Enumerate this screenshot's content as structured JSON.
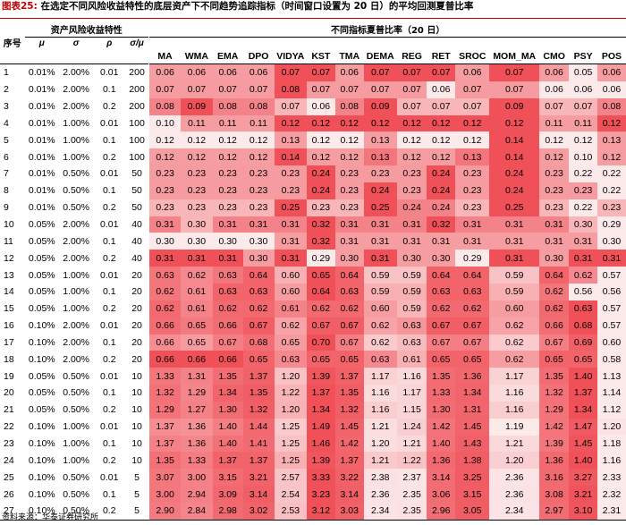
{
  "title": {
    "figure_no": "图表25:",
    "text": "在选定不同风险收益特性的底层资产下不同趋势追踪指标（时间窗口设置为 20 日）的平均回测夏普比率"
  },
  "header": {
    "index_label": "序号",
    "group_left": "资产风险收益特性",
    "group_right": "不同指标夏普比率（20 日）",
    "params": [
      "μ",
      "σ",
      "ρ",
      "σ/μ"
    ],
    "indicators": [
      "MA",
      "WMA",
      "EMA",
      "DPO",
      "VIDYA",
      "KST",
      "TMA",
      "DEMA",
      "REG",
      "RET",
      "SROC",
      "MOM_MA",
      "CMO",
      "PSY",
      "POS"
    ]
  },
  "colors": {
    "heat_low": "#fce9ea",
    "heat_high": "#f05058",
    "accent": "#c00000"
  },
  "rows": [
    {
      "i": "1",
      "mu": "0.01%",
      "sigma": "2.00%",
      "rho": "0.01",
      "sm": "200",
      "v": [
        "0.06",
        "0.06",
        "0.06",
        "0.06",
        "0.07",
        "0.07",
        "0.06",
        "0.07",
        "0.07",
        "0.07",
        "0.06",
        "0.07",
        "0.06",
        "0.05",
        "0.06"
      ]
    },
    {
      "i": "2",
      "mu": "0.01%",
      "sigma": "2.00%",
      "rho": "0.1",
      "sm": "200",
      "v": [
        "0.07",
        "0.07",
        "0.07",
        "0.07",
        "0.08",
        "0.07",
        "0.07",
        "0.07",
        "0.07",
        "0.06",
        "0.07",
        "0.07",
        "0.06",
        "0.06",
        "0.06"
      ]
    },
    {
      "i": "3",
      "mu": "0.01%",
      "sigma": "2.00%",
      "rho": "0.2",
      "sm": "200",
      "v": [
        "0.08",
        "0.09",
        "0.08",
        "0.08",
        "0.07",
        "0.06",
        "0.08",
        "0.09",
        "0.07",
        "0.07",
        "0.07",
        "0.09",
        "0.07",
        "0.07",
        "0.08"
      ]
    },
    {
      "i": "4",
      "mu": "0.01%",
      "sigma": "1.00%",
      "rho": "0.01",
      "sm": "100",
      "v": [
        "0.10",
        "0.11",
        "0.11",
        "0.11",
        "0.12",
        "0.12",
        "0.12",
        "0.12",
        "0.12",
        "0.12",
        "0.12",
        "0.12",
        "0.11",
        "0.11",
        "0.12"
      ]
    },
    {
      "i": "5",
      "mu": "0.01%",
      "sigma": "1.00%",
      "rho": "0.1",
      "sm": "100",
      "v": [
        "0.12",
        "0.12",
        "0.12",
        "0.12",
        "0.13",
        "0.12",
        "0.12",
        "0.13",
        "0.12",
        "0.12",
        "0.12",
        "0.14",
        "0.12",
        "0.12",
        "0.13"
      ]
    },
    {
      "i": "6",
      "mu": "0.01%",
      "sigma": "1.00%",
      "rho": "0.2",
      "sm": "100",
      "v": [
        "0.12",
        "0.12",
        "0.12",
        "0.12",
        "0.14",
        "0.12",
        "0.12",
        "0.13",
        "0.12",
        "0.12",
        "0.13",
        "0.14",
        "0.12",
        "0.10",
        "0.12"
      ]
    },
    {
      "i": "7",
      "mu": "0.01%",
      "sigma": "0.50%",
      "rho": "0.01",
      "sm": "50",
      "v": [
        "0.23",
        "0.23",
        "0.23",
        "0.23",
        "0.23",
        "0.24",
        "0.23",
        "0.23",
        "0.23",
        "0.24",
        "0.23",
        "0.24",
        "0.23",
        "0.22",
        "0.22"
      ]
    },
    {
      "i": "8",
      "mu": "0.01%",
      "sigma": "0.50%",
      "rho": "0.1",
      "sm": "50",
      "v": [
        "0.23",
        "0.23",
        "0.23",
        "0.23",
        "0.23",
        "0.24",
        "0.23",
        "0.24",
        "0.23",
        "0.24",
        "0.23",
        "0.24",
        "0.23",
        "0.23",
        "0.22"
      ]
    },
    {
      "i": "9",
      "mu": "0.01%",
      "sigma": "0.50%",
      "rho": "0.2",
      "sm": "50",
      "v": [
        "0.23",
        "0.23",
        "0.23",
        "0.23",
        "0.25",
        "0.23",
        "0.23",
        "0.25",
        "0.24",
        "0.24",
        "0.23",
        "0.25",
        "0.23",
        "0.22",
        "0.23"
      ]
    },
    {
      "i": "10",
      "mu": "0.05%",
      "sigma": "2.00%",
      "rho": "0.01",
      "sm": "40",
      "v": [
        "0.31",
        "0.30",
        "0.31",
        "0.31",
        "0.31",
        "0.32",
        "0.31",
        "0.31",
        "0.31",
        "0.32",
        "0.31",
        "0.31",
        "0.31",
        "0.30",
        "0.29"
      ]
    },
    {
      "i": "11",
      "mu": "0.05%",
      "sigma": "2.00%",
      "rho": "0.1",
      "sm": "40",
      "v": [
        "0.30",
        "0.30",
        "0.30",
        "0.30",
        "0.31",
        "0.32",
        "0.31",
        "0.31",
        "0.31",
        "0.31",
        "0.31",
        "0.31",
        "0.31",
        "0.31",
        "0.30"
      ]
    },
    {
      "i": "12",
      "mu": "0.05%",
      "sigma": "2.00%",
      "rho": "0.2",
      "sm": "40",
      "v": [
        "0.31",
        "0.31",
        "0.31",
        "0.30",
        "0.31",
        "0.29",
        "0.30",
        "0.31",
        "0.30",
        "0.30",
        "0.29",
        "0.31",
        "0.30",
        "0.31",
        "0.31"
      ]
    },
    {
      "i": "13",
      "mu": "0.05%",
      "sigma": "1.00%",
      "rho": "0.01",
      "sm": "20",
      "v": [
        "0.63",
        "0.62",
        "0.63",
        "0.64",
        "0.60",
        "0.65",
        "0.64",
        "0.59",
        "0.59",
        "0.64",
        "0.64",
        "0.59",
        "0.64",
        "0.62",
        "0.57"
      ]
    },
    {
      "i": "14",
      "mu": "0.05%",
      "sigma": "1.00%",
      "rho": "0.1",
      "sm": "20",
      "v": [
        "0.62",
        "0.61",
        "0.63",
        "0.63",
        "0.60",
        "0.64",
        "0.63",
        "0.59",
        "0.59",
        "0.63",
        "0.63",
        "0.59",
        "0.62",
        "0.56",
        "0.56"
      ]
    },
    {
      "i": "15",
      "mu": "0.05%",
      "sigma": "1.00%",
      "rho": "0.2",
      "sm": "20",
      "v": [
        "0.62",
        "0.61",
        "0.62",
        "0.62",
        "0.61",
        "0.62",
        "0.62",
        "0.60",
        "0.59",
        "0.62",
        "0.62",
        "0.60",
        "0.62",
        "0.63",
        "0.57"
      ]
    },
    {
      "i": "16",
      "mu": "0.10%",
      "sigma": "2.00%",
      "rho": "0.01",
      "sm": "20",
      "v": [
        "0.66",
        "0.65",
        "0.66",
        "0.67",
        "0.62",
        "0.67",
        "0.67",
        "0.62",
        "0.63",
        "0.67",
        "0.67",
        "0.62",
        "0.66",
        "0.68",
        "0.57"
      ]
    },
    {
      "i": "17",
      "mu": "0.10%",
      "sigma": "2.00%",
      "rho": "0.1",
      "sm": "20",
      "v": [
        "0.66",
        "0.65",
        "0.67",
        "0.68",
        "0.65",
        "0.70",
        "0.67",
        "0.62",
        "0.63",
        "0.67",
        "0.67",
        "0.62",
        "0.67",
        "0.69",
        "0.60"
      ]
    },
    {
      "i": "18",
      "mu": "0.10%",
      "sigma": "2.00%",
      "rho": "0.2",
      "sm": "20",
      "v": [
        "0.66",
        "0.66",
        "0.66",
        "0.65",
        "0.63",
        "0.65",
        "0.65",
        "0.63",
        "0.61",
        "0.65",
        "0.65",
        "0.62",
        "0.65",
        "0.65",
        "0.58"
      ]
    },
    {
      "i": "19",
      "mu": "0.05%",
      "sigma": "0.50%",
      "rho": "0.01",
      "sm": "10",
      "v": [
        "1.33",
        "1.31",
        "1.35",
        "1.37",
        "1.20",
        "1.39",
        "1.37",
        "1.17",
        "1.16",
        "1.35",
        "1.36",
        "1.17",
        "1.35",
        "1.40",
        "1.13"
      ]
    },
    {
      "i": "20",
      "mu": "0.05%",
      "sigma": "0.50%",
      "rho": "0.1",
      "sm": "10",
      "v": [
        "1.32",
        "1.29",
        "1.34",
        "1.35",
        "1.22",
        "1.37",
        "1.35",
        "1.16",
        "1.17",
        "1.33",
        "1.34",
        "1.16",
        "1.32",
        "1.37",
        "1.14"
      ]
    },
    {
      "i": "21",
      "mu": "0.05%",
      "sigma": "0.50%",
      "rho": "0.2",
      "sm": "10",
      "v": [
        "1.29",
        "1.27",
        "1.30",
        "1.32",
        "1.20",
        "1.34",
        "1.32",
        "1.16",
        "1.15",
        "1.30",
        "1.31",
        "1.16",
        "1.29",
        "1.34",
        "1.12"
      ]
    },
    {
      "i": "22",
      "mu": "0.10%",
      "sigma": "1.00%",
      "rho": "0.01",
      "sm": "10",
      "v": [
        "1.37",
        "1.36",
        "1.40",
        "1.44",
        "1.25",
        "1.49",
        "1.45",
        "1.21",
        "1.24",
        "1.42",
        "1.45",
        "1.19",
        "1.42",
        "1.47",
        "1.20"
      ]
    },
    {
      "i": "23",
      "mu": "0.10%",
      "sigma": "1.00%",
      "rho": "0.1",
      "sm": "10",
      "v": [
        "1.37",
        "1.36",
        "1.40",
        "1.41",
        "1.25",
        "1.46",
        "1.42",
        "1.20",
        "1.21",
        "1.40",
        "1.43",
        "1.21",
        "1.39",
        "1.45",
        "1.18"
      ]
    },
    {
      "i": "24",
      "mu": "0.10%",
      "sigma": "1.00%",
      "rho": "0.2",
      "sm": "10",
      "v": [
        "1.35",
        "1.33",
        "1.37",
        "1.37",
        "1.25",
        "1.39",
        "1.37",
        "1.21",
        "1.22",
        "1.36",
        "1.38",
        "1.20",
        "1.36",
        "1.40",
        "1.16"
      ]
    },
    {
      "i": "25",
      "mu": "0.10%",
      "sigma": "0.50%",
      "rho": "0.01",
      "sm": "5",
      "v": [
        "3.07",
        "3.00",
        "3.15",
        "3.21",
        "2.57",
        "3.33",
        "3.22",
        "2.38",
        "2.37",
        "3.14",
        "3.25",
        "2.36",
        "3.16",
        "3.27",
        "2.33"
      ]
    },
    {
      "i": "26",
      "mu": "0.10%",
      "sigma": "0.50%",
      "rho": "0.1",
      "sm": "5",
      "v": [
        "3.00",
        "2.94",
        "3.09",
        "3.14",
        "2.54",
        "3.23",
        "3.14",
        "2.36",
        "2.35",
        "3.06",
        "3.15",
        "2.36",
        "3.08",
        "3.21",
        "2.32"
      ]
    },
    {
      "i": "27",
      "mu": "0.10%",
      "sigma": "0.50%",
      "rho": "0.2",
      "sm": "5",
      "v": [
        "2.90",
        "2.84",
        "2.98",
        "3.02",
        "2.53",
        "3.12",
        "3.03",
        "2.34",
        "2.35",
        "2.96",
        "3.05",
        "2.34",
        "2.97",
        "3.10",
        "2.31"
      ]
    }
  ],
  "footer": "资料来源：华泰证券研究所"
}
